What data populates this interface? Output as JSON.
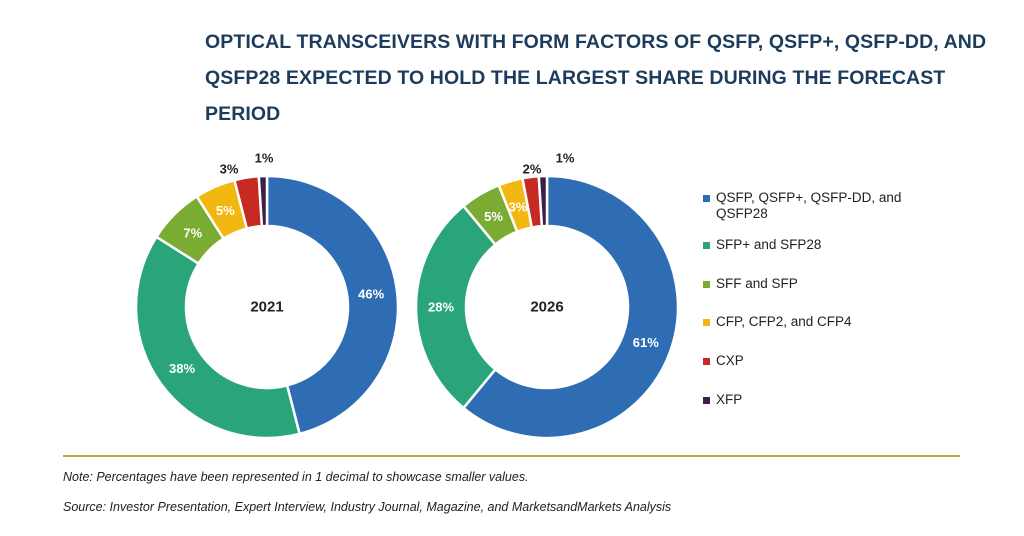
{
  "title_lines": [
    "OPTICAL TRANSCEIVERS WITH FORM FACTORS OF QSFP, QSFP+, QSFP-DD, AND",
    "QSFP28 EXPECTED TO HOLD THE LARGEST SHARE DURING THE FORECAST",
    "PERIOD"
  ],
  "chart_data": [
    {
      "type": "pie",
      "center_label": "2021",
      "categories": [
        "QSFP, QSFP+, QSFP-DD, and QSFP28",
        "SFP+ and SFP28",
        "SFF and SFP",
        "CFP, CFP2, and CFP4",
        "CXP",
        "XFP"
      ],
      "values": [
        46,
        38,
        7,
        5,
        3,
        1
      ],
      "value_labels": [
        "46%",
        "38%",
        "7%",
        "5%",
        "3%",
        "1%"
      ]
    },
    {
      "type": "pie",
      "center_label": "2026",
      "categories": [
        "QSFP, QSFP+, QSFP-DD, and QSFP28",
        "SFP+ and SFP28",
        "SFF and SFP",
        "CFP, CFP2, and CFP4",
        "CXP",
        "XFP"
      ],
      "values": [
        61,
        28,
        5,
        3,
        2,
        1
      ],
      "value_labels": [
        "61%",
        "28%",
        "5%",
        "3%",
        "2%",
        "1%"
      ]
    }
  ],
  "legend": [
    {
      "label": "QSFP, QSFP+, QSFP-DD, and QSFP28",
      "color": "#2e6db4"
    },
    {
      "label": "SFP+ and SFP28",
      "color": "#2aa57a"
    },
    {
      "label": "SFF and SFP",
      "color": "#7aab33"
    },
    {
      "label": "CFP, CFP2, and CFP4",
      "color": "#f2b710"
    },
    {
      "label": "CXP",
      "color": "#c62a22"
    },
    {
      "label": "XFP",
      "color": "#3d1f45"
    }
  ],
  "footnotes": {
    "note": "Note: Percentages have been represented in 1 decimal to showcase smaller values.",
    "source": "Source: Investor Presentation, Expert Interview, Industry Journal, Magazine, and MarketsandMarkets Analysis"
  }
}
